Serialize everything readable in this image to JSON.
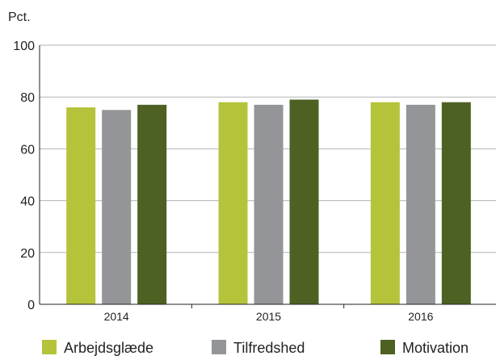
{
  "chart_data": {
    "type": "bar",
    "ylabel": "Pct.",
    "xlabel": "",
    "ylim": [
      0,
      100
    ],
    "yticks": [
      "0",
      "20",
      "40",
      "60",
      "80",
      "100"
    ],
    "categories": [
      "2014",
      "2015",
      "2016"
    ],
    "series": [
      {
        "name": "Arbejdsglæde",
        "color": "#b5c33b",
        "values": [
          76,
          78,
          78
        ]
      },
      {
        "name": "Tilfredshed",
        "color": "#939598",
        "values": [
          75,
          77,
          77
        ]
      },
      {
        "name": "Motivation",
        "color": "#4d6122",
        "values": [
          77,
          79,
          78
        ]
      }
    ],
    "grid": true,
    "legend_position": "bottom"
  }
}
